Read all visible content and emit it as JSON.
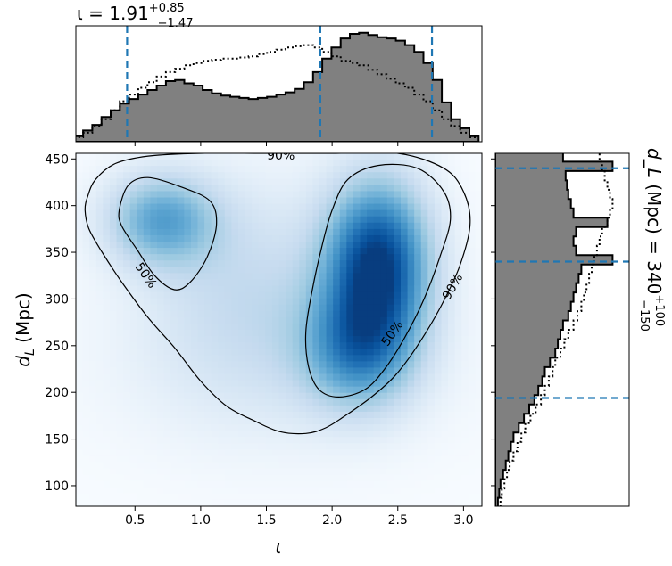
{
  "chart_data": [
    {
      "type": "heatmap",
      "panel": "joint",
      "xlabel": "ι",
      "ylabel": "d_L (Mpc)",
      "xlim": [
        0.05,
        3.14
      ],
      "ylim": [
        78,
        456
      ],
      "xticks": [
        0.5,
        1.0,
        1.5,
        2.0,
        2.5,
        3.0
      ],
      "xtick_labels": [
        "0.5",
        "1.0",
        "1.5",
        "2.0",
        "2.5",
        "3.0"
      ],
      "yticks": [
        100,
        150,
        200,
        250,
        300,
        350,
        400,
        450
      ],
      "ytick_labels": [
        "100",
        "150",
        "200",
        "250",
        "300",
        "350",
        "400",
        "450"
      ],
      "colormap": "Blues",
      "density_modes": [
        {
          "x": 2.35,
          "y": 340,
          "weight": 1.0
        },
        {
          "x": 0.7,
          "y": 385,
          "weight": 0.55
        }
      ],
      "contours": [
        {
          "level": "90%",
          "paths": [
            [
              [
                0.12,
                395
              ],
              [
                0.14,
                410
              ],
              [
                0.2,
                428
              ],
              [
                0.35,
                445
              ],
              [
                0.6,
                453
              ],
              [
                1.0,
                456
              ],
              [
                1.5,
                456
              ],
              [
                2.0,
                456
              ],
              [
                2.5,
                456
              ],
              [
                2.85,
                440
              ],
              [
                3.0,
                415
              ],
              [
                3.05,
                380
              ],
              [
                2.97,
                335
              ],
              [
                2.82,
                290
              ],
              [
                2.65,
                250
              ],
              [
                2.48,
                218
              ],
              [
                2.3,
                195
              ],
              [
                2.1,
                175
              ],
              [
                1.95,
                162
              ],
              [
                1.8,
                156
              ],
              [
                1.6,
                158
              ],
              [
                1.4,
                170
              ],
              [
                1.2,
                185
              ],
              [
                1.0,
                212
              ],
              [
                0.8,
                248
              ],
              [
                0.6,
                280
              ],
              [
                0.4,
                318
              ],
              [
                0.25,
                350
              ],
              [
                0.15,
                375
              ],
              [
                0.12,
                395
              ]
            ]
          ]
        },
        {
          "level": "50%",
          "paths": [
            [
              [
                0.38,
                395
              ],
              [
                0.45,
                422
              ],
              [
                0.6,
                430
              ],
              [
                0.85,
                420
              ],
              [
                1.07,
                405
              ],
              [
                1.12,
                380
              ],
              [
                1.05,
                345
              ],
              [
                0.92,
                318
              ],
              [
                0.8,
                310
              ],
              [
                0.65,
                325
              ],
              [
                0.52,
                352
              ],
              [
                0.4,
                378
              ],
              [
                0.38,
                395
              ]
            ],
            [
              [
                2.12,
                428
              ],
              [
                2.35,
                443
              ],
              [
                2.65,
                440
              ],
              [
                2.85,
                415
              ],
              [
                2.9,
                385
              ],
              [
                2.82,
                345
              ],
              [
                2.7,
                300
              ],
              [
                2.55,
                258
              ],
              [
                2.4,
                225
              ],
              [
                2.25,
                203
              ],
              [
                2.05,
                195
              ],
              [
                1.9,
                203
              ],
              [
                1.82,
                228
              ],
              [
                1.8,
                265
              ],
              [
                1.85,
                310
              ],
              [
                1.92,
                355
              ],
              [
                2.0,
                395
              ],
              [
                2.12,
                428
              ]
            ]
          ]
        }
      ],
      "contour_labels": [
        {
          "text": "90%",
          "x": 1.61,
          "y": 453
        },
        {
          "text": "50%",
          "x": 0.58,
          "y": 325
        },
        {
          "text": "50%",
          "x": 2.46,
          "y": 263
        },
        {
          "text": "90%",
          "x": 2.92,
          "y": 313
        }
      ]
    },
    {
      "type": "histogram",
      "panel": "top-marginal",
      "title": "ι = 1.91^{+0.85}_{−1.47}",
      "title_parts": {
        "var": "ι",
        "eq": " = ",
        "median": "1.91",
        "plus": "+0.85",
        "minus": "−1.47"
      },
      "xlim": [
        0.05,
        3.14
      ],
      "x": [
        0.07,
        0.14,
        0.21,
        0.28,
        0.35,
        0.42,
        0.49,
        0.56,
        0.63,
        0.7,
        0.77,
        0.84,
        0.91,
        0.98,
        1.05,
        1.12,
        1.19,
        1.26,
        1.33,
        1.4,
        1.47,
        1.54,
        1.61,
        1.68,
        1.75,
        1.82,
        1.89,
        1.96,
        2.03,
        2.1,
        2.17,
        2.24,
        2.31,
        2.38,
        2.45,
        2.52,
        2.59,
        2.66,
        2.73,
        2.8,
        2.87,
        2.94,
        3.01,
        3.08
      ],
      "series": [
        {
          "style": "filled",
          "values": [
            0.05,
            0.1,
            0.15,
            0.22,
            0.28,
            0.34,
            0.38,
            0.42,
            0.46,
            0.5,
            0.54,
            0.55,
            0.52,
            0.5,
            0.46,
            0.43,
            0.41,
            0.4,
            0.39,
            0.38,
            0.39,
            0.4,
            0.42,
            0.44,
            0.47,
            0.53,
            0.62,
            0.74,
            0.84,
            0.92,
            0.96,
            0.97,
            0.95,
            0.93,
            0.92,
            0.9,
            0.86,
            0.8,
            0.7,
            0.55,
            0.35,
            0.2,
            0.12,
            0.05
          ]
        },
        {
          "style": "dotted",
          "values": [
            0.04,
            0.08,
            0.14,
            0.2,
            0.28,
            0.36,
            0.42,
            0.48,
            0.53,
            0.58,
            0.62,
            0.65,
            0.68,
            0.7,
            0.72,
            0.73,
            0.74,
            0.74,
            0.75,
            0.76,
            0.78,
            0.8,
            0.82,
            0.84,
            0.85,
            0.86,
            0.84,
            0.8,
            0.76,
            0.72,
            0.7,
            0.68,
            0.64,
            0.6,
            0.56,
            0.52,
            0.48,
            0.42,
            0.36,
            0.28,
            0.2,
            0.14,
            0.08,
            0.04
          ]
        }
      ],
      "vlines": [
        0.44,
        1.91,
        2.76
      ]
    },
    {
      "type": "histogram",
      "panel": "right-marginal",
      "orientation": "horizontal",
      "side_title": "d_L (Mpc) = 340^{+100}_{−150}",
      "side_title_parts": {
        "var": "d_L",
        "unit": " (Mpc) = ",
        "median": "340",
        "plus": "+100",
        "minus": "−150"
      },
      "ylim": [
        78,
        456
      ],
      "y": [
        82,
        92,
        102,
        112,
        122,
        132,
        142,
        152,
        162,
        172,
        182,
        192,
        202,
        212,
        222,
        232,
        242,
        252,
        262,
        272,
        282,
        292,
        302,
        312,
        322,
        332,
        342,
        352,
        362,
        372,
        382,
        392,
        402,
        412,
        422,
        432,
        442,
        452
      ],
      "series": [
        {
          "style": "filled",
          "values": [
            0.02,
            0.03,
            0.04,
            0.06,
            0.08,
            0.1,
            0.12,
            0.14,
            0.18,
            0.22,
            0.26,
            0.3,
            0.33,
            0.36,
            0.38,
            0.42,
            0.46,
            0.48,
            0.5,
            0.52,
            0.56,
            0.58,
            0.6,
            0.62,
            0.64,
            0.66,
            0.9,
            0.62,
            0.6,
            0.62,
            0.86,
            0.6,
            0.58,
            0.56,
            0.55,
            0.54,
            0.9,
            0.52
          ]
        },
        {
          "style": "dotted",
          "values": [
            0.04,
            0.05,
            0.07,
            0.09,
            0.11,
            0.14,
            0.17,
            0.2,
            0.23,
            0.27,
            0.31,
            0.35,
            0.38,
            0.41,
            0.44,
            0.46,
            0.5,
            0.53,
            0.56,
            0.6,
            0.63,
            0.66,
            0.68,
            0.7,
            0.72,
            0.74,
            0.76,
            0.78,
            0.8,
            0.82,
            0.86,
            0.88,
            0.9,
            0.88,
            0.86,
            0.84,
            0.82,
            0.8
          ]
        }
      ],
      "hlines": [
        194,
        340,
        440
      ]
    }
  ]
}
